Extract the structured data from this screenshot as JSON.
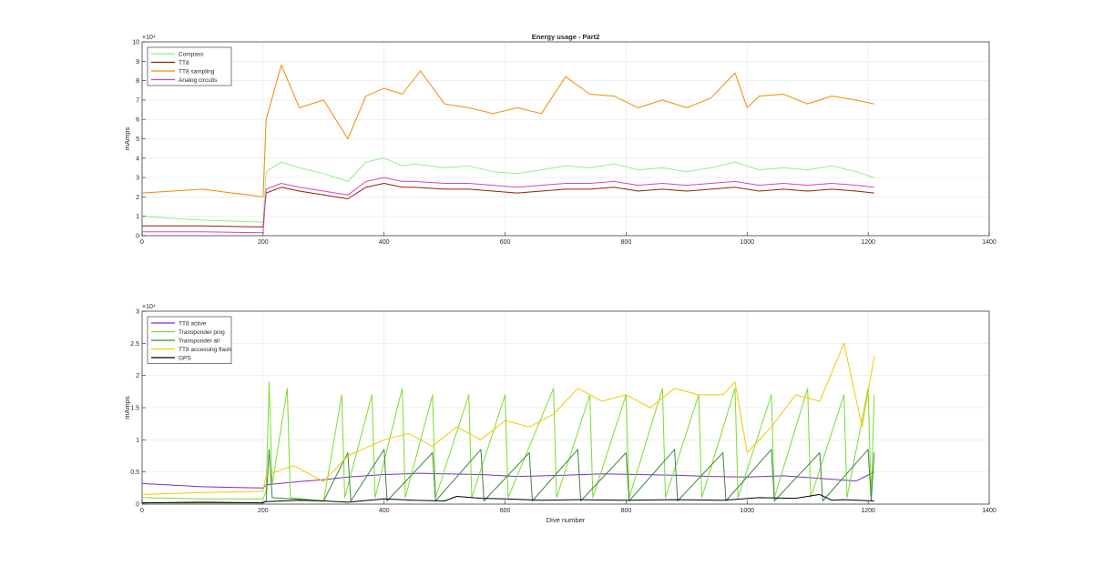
{
  "figure": {
    "background": "#ffffff"
  },
  "chart_data": [
    {
      "type": "line",
      "title": "Energy usage - Part2",
      "xlabel": "",
      "ylabel": "mAmps",
      "xlim": [
        0,
        1400
      ],
      "ylim": [
        0,
        100000
      ],
      "xticks": [
        0,
        200,
        400,
        600,
        800,
        1000,
        1200,
        1400
      ],
      "yticks": [
        0,
        10000,
        20000,
        30000,
        40000,
        50000,
        60000,
        70000,
        80000,
        90000,
        100000
      ],
      "ytick_labels": [
        "0",
        "1",
        "2",
        "3",
        "4",
        "5",
        "6",
        "7",
        "8",
        "9",
        "10"
      ],
      "yexponent": "×10⁴",
      "grid": true,
      "legend_position": "top-left",
      "series": [
        {
          "name": "Compass",
          "color": "#90ee90",
          "x": [
            0,
            100,
            200,
            205,
            230,
            260,
            300,
            340,
            370,
            400,
            430,
            450,
            500,
            540,
            580,
            620,
            660,
            700,
            740,
            780,
            820,
            860,
            900,
            940,
            980,
            1000,
            1020,
            1060,
            1100,
            1140,
            1180,
            1210
          ],
          "values": [
            10000,
            8000,
            7000,
            33000,
            38000,
            35000,
            32000,
            28000,
            38000,
            40000,
            36000,
            37000,
            35000,
            36000,
            33000,
            32000,
            34000,
            36000,
            35000,
            37000,
            34000,
            35000,
            33000,
            35000,
            38000,
            36000,
            34000,
            35000,
            34000,
            36000,
            33000,
            30000
          ]
        },
        {
          "name": "TT8",
          "color": "#8b2500",
          "x": [
            0,
            100,
            200,
            205,
            230,
            260,
            300,
            340,
            370,
            400,
            430,
            450,
            500,
            540,
            580,
            620,
            660,
            700,
            740,
            780,
            820,
            860,
            900,
            940,
            980,
            1000,
            1020,
            1060,
            1100,
            1140,
            1180,
            1210
          ],
          "values": [
            5000,
            5000,
            4500,
            22000,
            25000,
            23000,
            21000,
            19000,
            25000,
            27000,
            25000,
            25000,
            24000,
            24000,
            23000,
            22000,
            23000,
            24000,
            24000,
            25000,
            23000,
            24000,
            23000,
            24000,
            25000,
            24000,
            23000,
            24000,
            23000,
            24000,
            23000,
            22000
          ]
        },
        {
          "name": "TT8 sampling",
          "color": "#f08c00",
          "x": [
            0,
            100,
            200,
            205,
            230,
            260,
            300,
            340,
            370,
            400,
            430,
            460,
            500,
            540,
            580,
            620,
            660,
            700,
            740,
            780,
            820,
            860,
            900,
            940,
            980,
            1000,
            1020,
            1060,
            1100,
            1140,
            1180,
            1210
          ],
          "values": [
            22000,
            24000,
            20000,
            60000,
            88000,
            66000,
            70000,
            50000,
            72000,
            76000,
            73000,
            85000,
            68000,
            66000,
            63000,
            66000,
            63000,
            82000,
            73000,
            72000,
            66000,
            70000,
            66000,
            71000,
            84000,
            66000,
            72000,
            73000,
            68000,
            72000,
            70000,
            68000
          ]
        },
        {
          "name": "Analog circuits",
          "color": "#e040c0",
          "x": [
            0,
            100,
            200,
            205,
            230,
            260,
            300,
            340,
            370,
            400,
            430,
            450,
            500,
            540,
            580,
            620,
            660,
            700,
            740,
            780,
            820,
            860,
            900,
            940,
            980,
            1000,
            1020,
            1060,
            1100,
            1140,
            1180,
            1210
          ],
          "values": [
            2000,
            2000,
            1500,
            24000,
            27000,
            25000,
            23000,
            21000,
            28000,
            30000,
            28000,
            28000,
            27000,
            27000,
            26000,
            25000,
            26000,
            27000,
            27000,
            28000,
            26000,
            27000,
            26000,
            27000,
            28000,
            27000,
            26000,
            27000,
            26000,
            27000,
            26000,
            25000
          ]
        }
      ]
    },
    {
      "type": "line",
      "title": "",
      "xlabel": "Dive number",
      "ylabel": "mAmps",
      "xlim": [
        0,
        1400
      ],
      "ylim": [
        0,
        30000
      ],
      "xticks": [
        0,
        200,
        400,
        600,
        800,
        1000,
        1200,
        1400
      ],
      "yticks": [
        0,
        5000,
        10000,
        15000,
        20000,
        25000,
        30000
      ],
      "ytick_labels": [
        "0",
        "0.5",
        "1",
        "1.5",
        "2",
        "2.5",
        "3"
      ],
      "yexponent": "×10⁴",
      "grid": true,
      "legend_position": "top-left",
      "series": [
        {
          "name": "TT8 active",
          "color": "#7e2fbf",
          "x": [
            0,
            100,
            200,
            205,
            260,
            300,
            340,
            400,
            460,
            500,
            560,
            620,
            700,
            760,
            820,
            880,
            940,
            1000,
            1060,
            1120,
            1180,
            1210
          ],
          "values": [
            3200,
            2700,
            2500,
            3000,
            3500,
            3800,
            4200,
            4600,
            4800,
            4700,
            4600,
            4300,
            4500,
            4700,
            4600,
            4500,
            4300,
            4200,
            4400,
            4000,
            3600,
            5000
          ]
        },
        {
          "name": "Transponder ping",
          "color": "#7cdc2e",
          "x": [
            0,
            100,
            200,
            205,
            210,
            215,
            240,
            245,
            300,
            330,
            335,
            380,
            385,
            430,
            435,
            480,
            485,
            540,
            545,
            600,
            605,
            680,
            685,
            740,
            745,
            800,
            805,
            860,
            865,
            920,
            925,
            980,
            985,
            1040,
            1045,
            1100,
            1105,
            1160,
            1165,
            1200,
            1205,
            1210
          ],
          "values": [
            1000,
            800,
            800,
            2000,
            19000,
            3000,
            18000,
            1000,
            500,
            17000,
            1000,
            17000,
            1000,
            18000,
            1000,
            17000,
            1000,
            17000,
            1000,
            17000,
            1000,
            18000,
            1000,
            17000,
            1000,
            17000,
            1000,
            18000,
            1000,
            17000,
            1000,
            18000,
            1000,
            17000,
            1000,
            18000,
            1000,
            17000,
            1000,
            18000,
            1000,
            17000
          ]
        },
        {
          "name": "Transponder all",
          "color": "#3a8a3a",
          "x": [
            0,
            100,
            200,
            205,
            210,
            215,
            300,
            340,
            345,
            400,
            405,
            480,
            485,
            560,
            565,
            640,
            645,
            720,
            725,
            800,
            805,
            880,
            885,
            960,
            965,
            1040,
            1045,
            1120,
            1125,
            1200,
            1205,
            1210
          ],
          "values": [
            200,
            200,
            200,
            500,
            8500,
            1000,
            500,
            8000,
            500,
            8500,
            500,
            8000,
            500,
            8500,
            500,
            8000,
            500,
            8500,
            500,
            8000,
            500,
            8500,
            500,
            8000,
            500,
            8500,
            500,
            8000,
            500,
            8500,
            500,
            8000
          ]
        },
        {
          "name": "TT8 accessing flash",
          "color": "#f5c800",
          "x": [
            0,
            100,
            200,
            205,
            250,
            300,
            340,
            400,
            440,
            480,
            520,
            560,
            600,
            640,
            680,
            720,
            760,
            800,
            840,
            880,
            920,
            960,
            980,
            1000,
            1040,
            1080,
            1120,
            1160,
            1190,
            1210
          ],
          "values": [
            1500,
            1800,
            2000,
            4500,
            6000,
            3500,
            7500,
            10000,
            11000,
            9000,
            12000,
            10000,
            13000,
            12000,
            14000,
            18000,
            16000,
            17000,
            15000,
            18000,
            17000,
            17000,
            19000,
            8000,
            12000,
            17000,
            16000,
            25000,
            12000,
            23000
          ]
        },
        {
          "name": "GPS",
          "color": "#000000",
          "x": [
            0,
            100,
            200,
            205,
            260,
            300,
            340,
            400,
            450,
            500,
            520,
            560,
            600,
            660,
            720,
            800,
            880,
            960,
            1020,
            1080,
            1120,
            1140,
            1160,
            1210
          ],
          "values": [
            200,
            300,
            200,
            400,
            600,
            500,
            300,
            800,
            600,
            500,
            1200,
            900,
            800,
            600,
            700,
            600,
            700,
            600,
            1000,
            900,
            1500,
            600,
            700,
            500
          ]
        }
      ]
    }
  ]
}
